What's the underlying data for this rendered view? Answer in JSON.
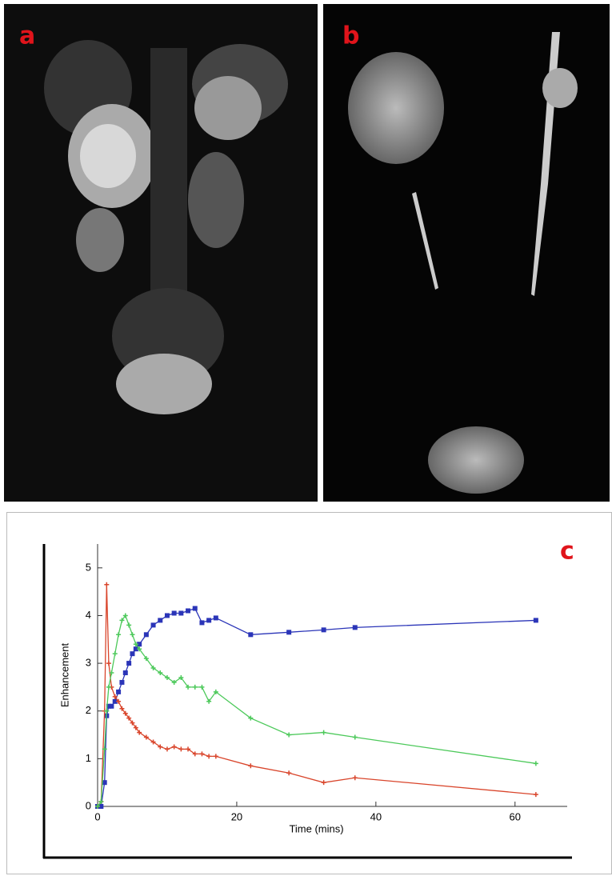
{
  "panels": {
    "a": "a",
    "b": "b"
  },
  "chart_data": {
    "type": "line",
    "panel_label": "c",
    "x_label": "Time (mins)",
    "y_label": "Enhancement",
    "x": [
      0,
      0.5,
      1,
      1.3,
      1.6,
      2,
      2.5,
      3,
      3.5,
      4,
      4.5,
      5,
      5.5,
      6,
      7,
      8,
      9,
      10,
      11,
      12,
      13,
      14,
      15,
      16,
      17,
      22,
      27.5,
      32.5,
      37,
      63
    ],
    "series": [
      {
        "color": "#2b35b8",
        "marker": "square",
        "values": [
          0,
          0,
          0.5,
          1.9,
          2.1,
          2.1,
          2.2,
          2.4,
          2.6,
          2.8,
          3.0,
          3.2,
          3.3,
          3.4,
          3.6,
          3.8,
          3.9,
          4.0,
          4.05,
          4.05,
          4.1,
          4.15,
          3.85,
          3.9,
          3.95,
          3.6,
          3.65,
          3.7,
          3.75,
          3.9
        ]
      },
      {
        "color": "#d9452b",
        "marker": "plus",
        "values": [
          0,
          0.1,
          2.0,
          4.65,
          3.0,
          2.5,
          2.3,
          2.2,
          2.05,
          1.95,
          1.85,
          1.75,
          1.65,
          1.55,
          1.45,
          1.35,
          1.25,
          1.2,
          1.25,
          1.2,
          1.2,
          1.1,
          1.1,
          1.05,
          1.05,
          0.85,
          0.7,
          0.5,
          0.6,
          0.25
        ]
      },
      {
        "color": "#4cc95a",
        "marker": "plus",
        "values": [
          0,
          0.1,
          1.2,
          2.0,
          2.5,
          2.8,
          3.2,
          3.6,
          3.9,
          4.0,
          3.8,
          3.6,
          3.4,
          3.3,
          3.1,
          2.9,
          2.8,
          2.7,
          2.6,
          2.7,
          2.5,
          2.5,
          2.5,
          2.2,
          2.4,
          1.85,
          1.5,
          1.55,
          1.45,
          0.9
        ]
      }
    ],
    "xlim": [
      0,
      67.5
    ],
    "ylim": [
      0,
      5.5
    ],
    "xticks": [
      0,
      20,
      40,
      60
    ],
    "yticks": [
      0,
      1,
      2,
      3,
      4,
      5
    ]
  }
}
